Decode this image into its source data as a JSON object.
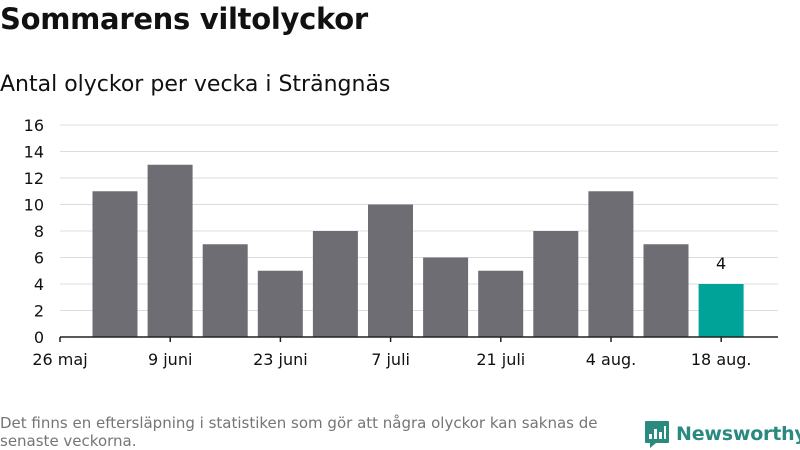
{
  "title": "Sommarens viltolyckor",
  "subtitle": "Antal olyckor per vecka i Strängnäs",
  "footnote": "Det finns en eftersläpning i statistiken som gör att några olyckor kan saknas de senaste veckorna.",
  "brand": "Newsworthy",
  "colors": {
    "bar": "#6e6d73",
    "highlight": "#00a398",
    "grid": "#dcdcdc",
    "axis": "#222222",
    "brand": "#2a8a80"
  },
  "chart_data": {
    "type": "bar",
    "title": "Sommarens viltolyckor",
    "subtitle": "Antal olyckor per vecka i Strängnäs",
    "xlabel": "",
    "ylabel": "",
    "ylim": [
      0,
      16
    ],
    "yticks": [
      0,
      2,
      4,
      6,
      8,
      10,
      12,
      14,
      16
    ],
    "xtick_labels": [
      "26 maj",
      "9 juni",
      "23 juni",
      "7 juli",
      "21 juli",
      "4 aug.",
      "18 aug."
    ],
    "values": [
      11,
      13,
      7,
      5,
      8,
      10,
      6,
      5,
      8,
      11,
      7,
      4
    ],
    "highlight_last": true,
    "data_labels": [
      {
        "index": 11,
        "text": "4"
      }
    ],
    "grid": true,
    "legend": "none"
  }
}
